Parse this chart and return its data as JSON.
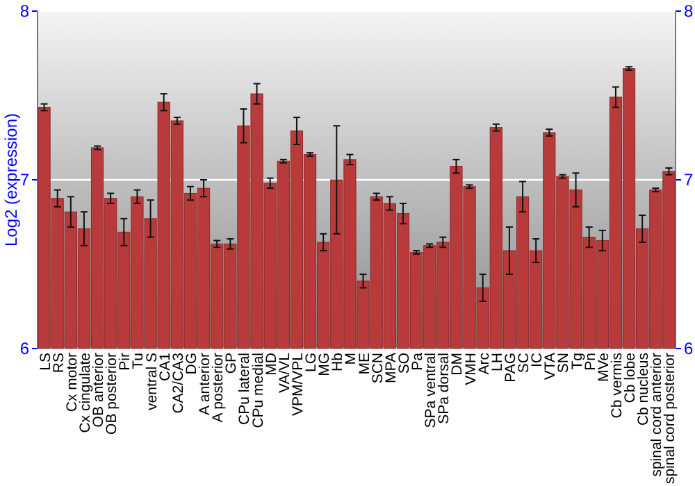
{
  "chart_data": {
    "type": "bar",
    "ylabel": "Log2 (expression)",
    "categories": [
      "LS",
      "RS",
      "Cx motor",
      "Cx cingulate",
      "OB anterior",
      "OB posterior",
      "Pir",
      "Tu",
      "ventral S",
      "CA1",
      "CA2/CA3",
      "DG",
      "A anterior",
      "A posterior",
      "GP",
      "CPu lateral",
      "CPu medial",
      "MD",
      "VA/VL",
      "VPM/VPL",
      "LG",
      "MG",
      "Hb",
      "M",
      "ME",
      "SCN",
      "MPA",
      "SO",
      "Pa",
      "SPa ventral",
      "SPa dorsal",
      "DM",
      "VMH",
      "Arc",
      "LH",
      "PAG",
      "SC",
      "IC",
      "VTA",
      "SN",
      "Tg",
      "Pn",
      "MVe",
      "Cb vermis",
      "Cb lobe",
      "Cb nucleus",
      "spinal cord anterior",
      "spinal cord posterior"
    ],
    "values": [
      7.43,
      6.89,
      6.81,
      6.71,
      7.19,
      6.89,
      6.69,
      6.9,
      6.77,
      7.46,
      7.35,
      6.92,
      6.95,
      6.62,
      6.62,
      7.32,
      7.51,
      6.98,
      7.11,
      7.29,
      7.15,
      6.63,
      7.0,
      7.12,
      6.4,
      6.9,
      6.86,
      6.8,
      6.57,
      6.61,
      6.63,
      7.08,
      6.96,
      6.36,
      7.31,
      6.58,
      6.9,
      6.58,
      7.28,
      7.02,
      6.94,
      6.66,
      6.64,
      7.49,
      7.66,
      6.71,
      6.94,
      7.05
    ],
    "errors": [
      0.02,
      0.05,
      0.09,
      0.1,
      0.01,
      0.03,
      0.08,
      0.04,
      0.11,
      0.05,
      0.02,
      0.04,
      0.05,
      0.02,
      0.03,
      0.1,
      0.06,
      0.03,
      0.01,
      0.08,
      0.01,
      0.05,
      0.32,
      0.03,
      0.04,
      0.02,
      0.04,
      0.06,
      0.01,
      0.01,
      0.03,
      0.04,
      0.01,
      0.08,
      0.02,
      0.14,
      0.09,
      0.07,
      0.02,
      0.01,
      0.1,
      0.06,
      0.06,
      0.06,
      0.01,
      0.08,
      0.01,
      0.02
    ],
    "color": "#b83a3a",
    "ylim": [
      6,
      8
    ],
    "yticks": [
      6,
      7,
      8
    ],
    "y2lim": [
      6,
      8
    ],
    "y2ticks": [
      6,
      7,
      8
    ],
    "grid": "y"
  }
}
